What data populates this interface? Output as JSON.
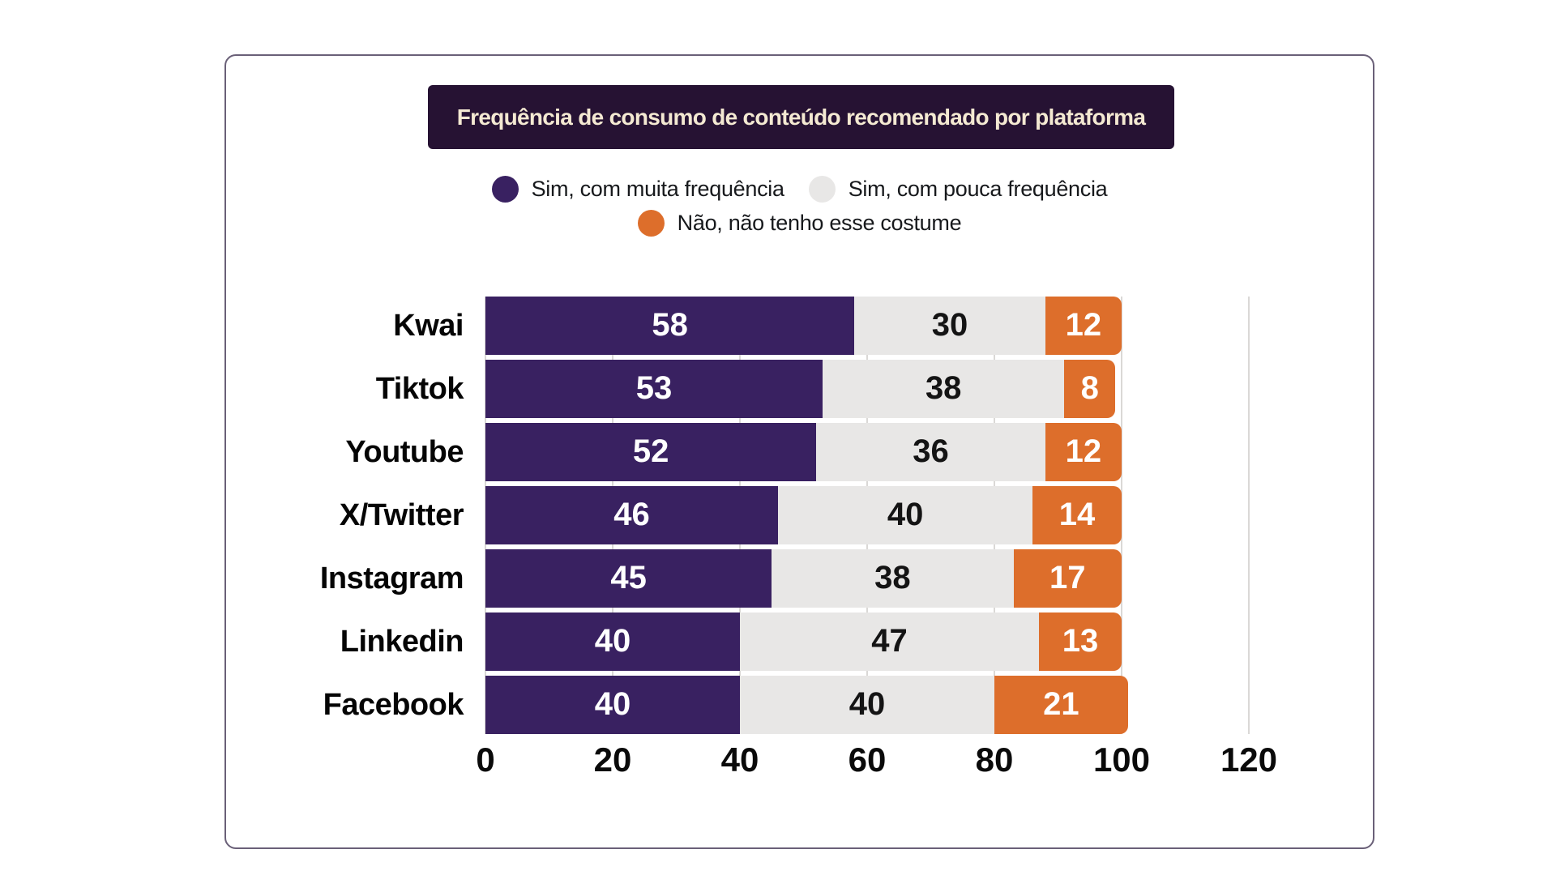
{
  "page": {
    "background": "#ffffff"
  },
  "card": {
    "border_color": "#6A6078"
  },
  "title": {
    "text": "Frequência de consumo de conteúdo recomendado por plataforma",
    "background": "#261233",
    "color": "#F4E9D2"
  },
  "chart_data": {
    "type": "bar",
    "orientation": "horizontal",
    "stacked": true,
    "title": "Frequência de consumo de conteúdo recomendado por plataforma",
    "categories": [
      "Kwai",
      "Tiktok",
      "Youtube",
      "X/Twitter",
      "Instagram",
      "Linkedin",
      "Facebook"
    ],
    "series": [
      {
        "name": "Sim, com muita frequência",
        "color": "#392161",
        "text_color": "#FFFFFF",
        "values": [
          58,
          53,
          52,
          46,
          45,
          40,
          40
        ]
      },
      {
        "name": "Sim, com pouca frequência",
        "color": "#E8E7E6",
        "text_color": "#141414",
        "values": [
          30,
          38,
          36,
          40,
          38,
          47,
          40
        ]
      },
      {
        "name": "Não, não tenho esse costume",
        "color": "#DD6E2B",
        "text_color": "#FFFFFF",
        "values": [
          12,
          8,
          12,
          14,
          17,
          13,
          21
        ]
      }
    ],
    "xlim": [
      0,
      120
    ],
    "x_ticks": [
      0,
      20,
      40,
      60,
      80,
      100,
      120
    ],
    "grid": "vertical",
    "gridline_color": "#DAD8D6",
    "legend_position": "top-center",
    "value_labels": "inside-center"
  }
}
